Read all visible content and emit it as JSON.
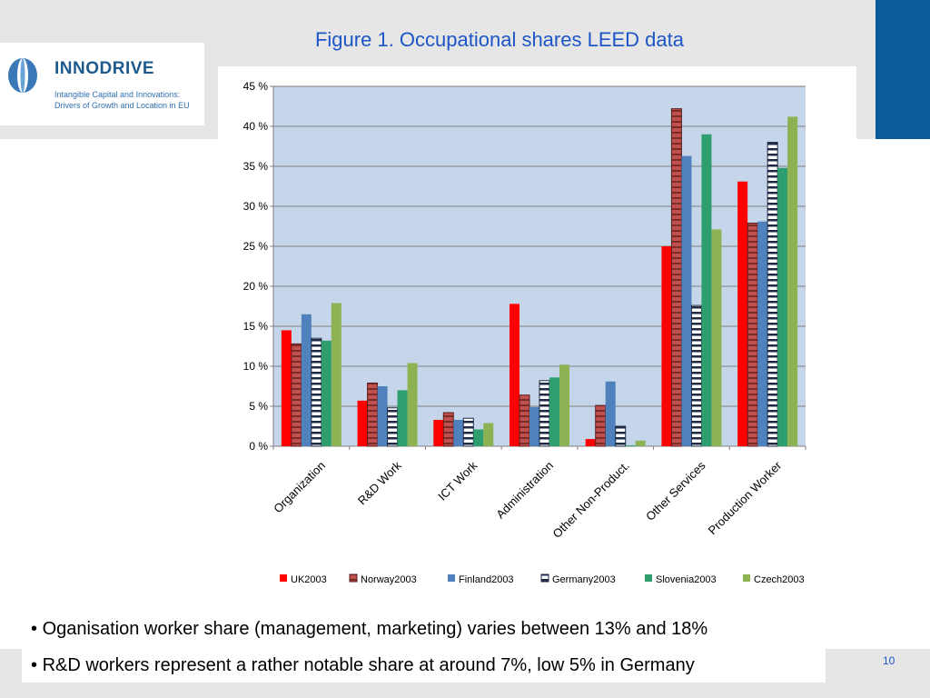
{
  "slide": {
    "title": "Figure 1. Occupational shares LEED data",
    "page_number": "10",
    "colors": {
      "corner_block": "#0a5a9c",
      "title_text": "#1d56c7",
      "band": "#e6e6e6"
    }
  },
  "logo": {
    "name": "INNODRIVE",
    "subtitle_line1": "Intangible Capital and Innovations:",
    "subtitle_line2": "Drivers of Growth and Location in EU",
    "icon": "innodrive-globe-icon"
  },
  "bullets": [
    {
      "marker": "•",
      "text": "Oganisation worker share (management, marketing) varies between 13% and 18%"
    },
    {
      "marker": "•",
      "text": "R&D workers represent a rather notable share at around 7%,  low 5%  in Germany"
    }
  ],
  "chart_data": {
    "type": "bar",
    "categories": [
      "Organization",
      "R&D Work",
      "ICT Work",
      "Administration",
      "Other Non-Product.",
      "Other Services",
      "Production Worker"
    ],
    "series": [
      {
        "name": "UK2003",
        "color": "#ff0000",
        "pattern": "solid",
        "values": [
          14.5,
          5.7,
          3.3,
          17.8,
          0.9,
          25.0,
          33.1
        ]
      },
      {
        "name": "Norway2003",
        "color": "#c0504d",
        "pattern": "hatched-red",
        "values": [
          12.8,
          7.9,
          4.2,
          6.4,
          5.1,
          42.2,
          27.9
        ]
      },
      {
        "name": "Finland2003",
        "color": "#4f81bd",
        "pattern": "solid",
        "values": [
          16.5,
          7.5,
          3.3,
          4.9,
          8.1,
          36.3,
          28.1
        ]
      },
      {
        "name": "Germany2003",
        "color": "#1f3864",
        "pattern": "striped-white",
        "values": [
          13.5,
          4.8,
          3.5,
          8.2,
          2.5,
          17.6,
          38.0
        ]
      },
      {
        "name": "Slovenia2003",
        "color": "#2e9e6e",
        "pattern": "solid",
        "values": [
          13.2,
          7.0,
          2.1,
          8.6,
          0.1,
          39.0,
          34.8
        ]
      },
      {
        "name": "Czech2003",
        "color": "#8db253",
        "pattern": "solid",
        "values": [
          17.9,
          10.4,
          2.9,
          10.2,
          0.7,
          27.1,
          41.2
        ]
      }
    ],
    "y_ticks": [
      "0 %",
      "5 %",
      "10 %",
      "15 %",
      "20 %",
      "25 %",
      "30 %",
      "35 %",
      "40 %",
      "45 %"
    ],
    "ylim": [
      0,
      45
    ],
    "y_step": 5,
    "grid": true,
    "legend_position": "bottom",
    "plot_background": "#c5d5ea"
  }
}
